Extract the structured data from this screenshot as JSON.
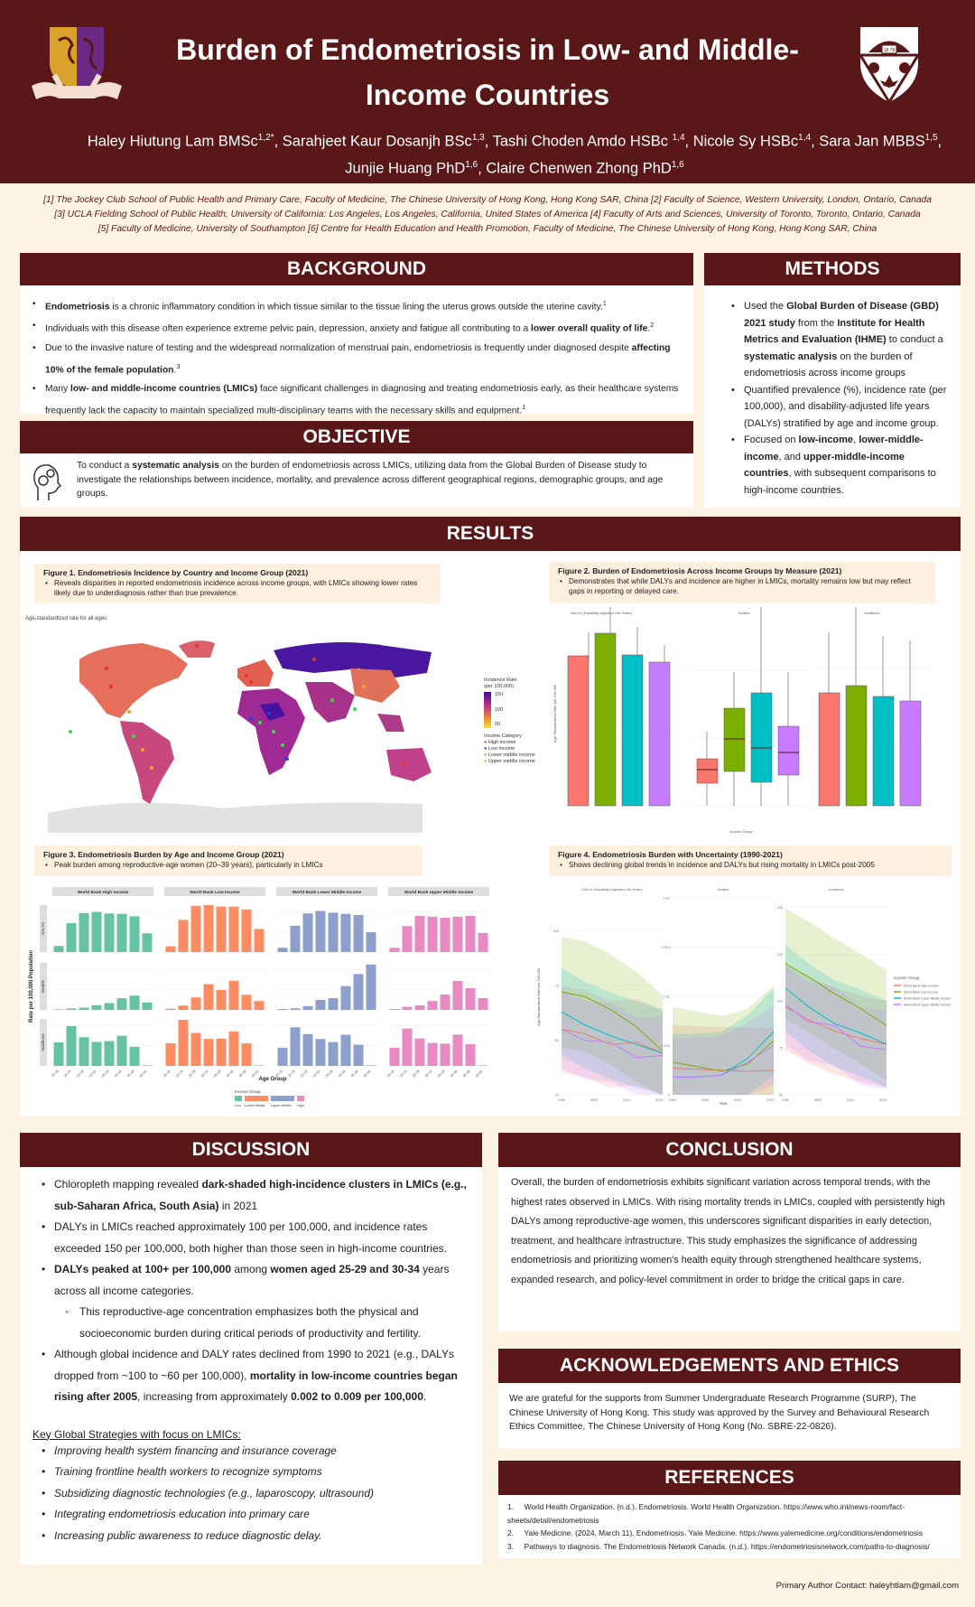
{
  "header": {
    "title_line1": "Burden of Endometriosis in Low- and Middle-",
    "title_line2": "Income Countries",
    "authors": [
      {
        "name": "Haley Hiutung Lam BMSc",
        "sup": "1,2*"
      },
      {
        "name": "Sarahjeet Kaur Dosanjh BSc",
        "sup": "1,3"
      },
      {
        "name": "Tashi Choden Amdo HSBc ",
        "sup": "1,4"
      },
      {
        "name": "Nicole Sy HSBc",
        "sup": "1,4"
      },
      {
        "name": "Sara Jan MBBS",
        "sup": "1,5"
      },
      {
        "name": "Junjie Huang PhD",
        "sup": "1,6"
      },
      {
        "name": "Claire Chenwen Zhong PhD",
        "sup": "1,6"
      }
    ],
    "logo_left": "university-crest-logo",
    "logo_right": "university-shield-logo",
    "logo_right_text": "18 78"
  },
  "affiliations": [
    "[1] The Jockey Club School of Public Health and Primary Care, Faculty of Medicine, The Chinese University of Hong Kong, Hong Kong SAR, China [2] Faculty of Science, Western University, London, Ontario, Canada",
    "[3] UCLA Fielding School of Public Health, University of California: Los Angeles, Los Angeles, California, United States of America [4] Faculty of Arts and Sciences, University of Toronto, Toronto, Ontario, Canada",
    "[5] Faculty of Medicine, University of Southampton [6] Centre for Health Education and Health Promotion, Faculty of Medicine, The Chinese University of Hong Kong, Hong Kong SAR, China"
  ],
  "background": {
    "heading": "BACKGROUND",
    "items": [
      {
        "b": "Endometriosis",
        "t": " is a chronic inflammatory condition in which tissue similar to the tissue lining the uterus grows outside the uterine cavity.",
        "sup": "1"
      },
      {
        "t0": "Individuals with this disease often experience extreme pelvic pain, depression, anxiety and fatigue all contributing to a ",
        "b": "lower overall quality of life",
        "t": ".",
        "sup": "2"
      },
      {
        "t0": "Due to the invasive nature of testing and the widespread normalization of menstrual pain, endometriosis is frequently under diagnosed despite ",
        "b": "affecting 10% of the female population",
        "t": ".",
        "sup": "3"
      },
      {
        "t0": "Many ",
        "b": "low- and middle-income countries (LMICs)",
        "t": " face significant challenges in diagnosing and treating endometriosis early, as their healthcare systems frequently lack the capacity to maintain specialized multi-disciplinary teams with the necessary skills and equipment.",
        "sup": "1"
      }
    ]
  },
  "objective": {
    "heading": "OBJECTIVE",
    "icon": "head-gears-icon",
    "t0": "To conduct a ",
    "b": "systematic analysis",
    "t": " on the burden of endometriosis across LMICs, utilizing data from the Global Burden of Disease study to investigate the relationships between incidence, mortality, and prevalence across different geographical regions, demographic groups, and age groups."
  },
  "methods": {
    "heading": "METHODS",
    "item1": {
      "t0": "Used the ",
      "b1": "Global Burden of Disease (GBD) 2021 study",
      "t1": " from the ",
      "b2": "Institute for Health Metrics and Evaluation (IHME)",
      "t2": " to conduct a ",
      "b3": "systematic analysis",
      "t3": " on the burden of endometriosis across income groups"
    },
    "item2": "Quantified prevalence (%), incidence rate (per 100,000), and disability-adjusted life years (DALYs) stratified by age and income group.",
    "item3": {
      "t0": "Focused on ",
      "b1": "low-income",
      "t1": ", ",
      "b2": "lower-middle-income",
      "t2": ", and ",
      "b3": "upper-middle-income countries",
      "t3": ", with subsequent comparisons to high-income countries."
    }
  },
  "results": {
    "heading": "RESULTS",
    "fig1": {
      "title": "Figure 1. Endometriosis Incidence by Country and Income Group (2021)",
      "bullet": "Reveals disparities in reported endometriosis incidence across income groups, with LMICs showing lower rates likely due to underdiagnosis rather than true prevalence."
    },
    "fig2": {
      "title": "Figure 2. Burden of Endometriosis  Across Income Groups by Measure (2021)",
      "bullet": "Demonstrates that while DALYs and incidence are higher in LMICs, mortality remains low but may reflect gaps in reporting or delayed care."
    },
    "fig3": {
      "title": "Figure 3. Endometriosis Burden by Age and Income Group (2021)",
      "bullet": "Peak burden among reproductive-age women (20–39 years), particularly in LMICs"
    },
    "fig4": {
      "title": "Figure 4. Endometriosis Burden with Uncertainty (1990-2021)",
      "bullet": "Shows declining global trends in incidence and DALYs but rising mortality in LMICs post-2005"
    }
  },
  "chart_data": [
    {
      "id": "fig1",
      "type": "heatmap",
      "title": "Age-standardized rate for all ages",
      "colorbar": {
        "label": "Incidence Rate (per 100,000)",
        "ticks": [
          50,
          100,
          150
        ],
        "colors": [
          "#f6e526",
          "#e7793f",
          "#b12a90",
          "#3d0f8c"
        ]
      },
      "legend_title": "Income Category",
      "legend": [
        {
          "name": "High income",
          "color": "#e8322b"
        },
        {
          "name": "Low income",
          "color": "#2a3fe0"
        },
        {
          "name": "Lower middle income",
          "color": "#3ddc3d"
        },
        {
          "name": "Upper middle income",
          "color": "#f6a21e"
        }
      ]
    },
    {
      "id": "fig2",
      "type": "bar",
      "facets": [
        "DALYs (Disability-Adjusted Life Years)",
        "Deaths",
        "Incidence"
      ],
      "categories": [
        "World Bank High Income",
        "World Bank Low Income",
        "World Bank Lower Middle Income",
        "World Bank Upper Middle Income"
      ],
      "colors": [
        "#f8766d",
        "#7cae00",
        "#00bfc4",
        "#c77cff"
      ],
      "ylabel": "Age-Standardized Rate per 100,000",
      "xlabel": "Income Group",
      "series": [
        {
          "name": "DALYs",
          "yticks": [
            0,
            50,
            100
          ],
          "box_top": [
            95,
            111,
            96,
            90
          ],
          "whisker_top": [
            111,
            128,
            111,
            101
          ]
        },
        {
          "name": "Deaths",
          "yticks": [
            0.0,
            0.01,
            0.02
          ],
          "box_low": [
            0.0007,
            0.0025,
            0.0008,
            0.0019
          ],
          "median": [
            0.0027,
            0.0072,
            0.0059,
            0.0052
          ],
          "box_high": [
            0.0044,
            0.0119,
            0.0141,
            0.0091
          ],
          "whisker_top": [
            0.0083,
            0.0173,
            0.0266,
            0.0171
          ]
        },
        {
          "name": "Incidence",
          "yticks": [
            0,
            100,
            200
          ],
          "box_top": [
            137,
            148,
            133,
            126
          ],
          "whisker_top": [
            225,
            262,
            220,
            214
          ]
        }
      ]
    },
    {
      "id": "fig3",
      "type": "bar",
      "xlabel": "Age Group",
      "ylabel": "Rate per 100,000 Population",
      "categories": [
        "15-19",
        "20-24",
        "25-29",
        "30-34",
        "35-39",
        "40-44",
        "45-49",
        "50-54"
      ],
      "facet_cols": [
        "World Bank High Income",
        "World Bank Low Income",
        "World Bank Lower Middle Income",
        "World Bank Upper Middle Income"
      ],
      "facet_rows": [
        "DALYs",
        "Deaths",
        "Incidence"
      ],
      "colors": [
        "#66c2a5",
        "#fc8d62",
        "#8da0cb",
        "#e78ac3"
      ],
      "legend_title": "Income Group",
      "legend": [
        "Low",
        "Lower Middle",
        "Upper Middle",
        "High"
      ],
      "series": [
        {
          "row": "DALYs",
          "yticks": [
            0,
            50,
            100
          ],
          "ymax": 130,
          "values": [
            [
              17,
              80,
              108,
              111,
              107,
              106,
              99,
              52
            ],
            [
              16,
              89,
              128,
              130,
              126,
              126,
              118,
              64
            ],
            [
              12,
              73,
              107,
              114,
              109,
              106,
              103,
              55
            ],
            [
              12,
              72,
              100,
              98,
              95,
              98,
              100,
              53
            ]
          ]
        },
        {
          "row": "Deaths",
          "yticks": [
            0.0,
            0.01,
            0.02
          ],
          "ymax": 0.027,
          "values": [
            [
              0.0003,
              0.0008,
              0.0013,
              0.0027,
              0.0039,
              0.0067,
              0.0082,
              0.0043
            ],
            [
              0.0007,
              0.0025,
              0.0072,
              0.0148,
              0.0115,
              0.0168,
              0.0087,
              0.0051
            ],
            [
              0.0005,
              0.0009,
              0.0022,
              0.0058,
              0.0068,
              0.0137,
              0.0206,
              0.0261
            ],
            [
              0.0005,
              0.0018,
              0.0026,
              0.0051,
              0.0088,
              0.0166,
              0.0125,
              0.0068
            ]
          ]
        },
        {
          "row": "Incidence",
          "yticks": [
            0,
            100,
            200
          ],
          "ymax": 270,
          "values": [
            [
              135,
              228,
              165,
              138,
              143,
              173,
              110,
              3
            ],
            [
              130,
              265,
              190,
              155,
              157,
              198,
              130,
              3
            ],
            [
              105,
              222,
              183,
              155,
              137,
              179,
              122,
              3
            ],
            [
              105,
              215,
              158,
              132,
              128,
              180,
              125,
              3
            ]
          ]
        }
      ]
    },
    {
      "id": "fig4",
      "type": "line",
      "facets": [
        "DALYs (Disability-Adjusted Life Years)",
        "Deaths",
        "Incidence"
      ],
      "x": [
        1990,
        2000,
        2010,
        2020
      ],
      "xlabel": "Year",
      "ylabel": "Age-Standardized Rate per 100,000",
      "legend_title": "Income Group",
      "legend": [
        {
          "name": "World Bank High Income",
          "color": "#f8766d"
        },
        {
          "name": "World Bank Low Income",
          "color": "#7cae00"
        },
        {
          "name": "World Bank Lower Middle Income",
          "color": "#00bfc4"
        },
        {
          "name": "World Bank Upper Middle Income",
          "color": "#c77cff"
        }
      ],
      "panels": [
        {
          "name": "DALYs",
          "yticks": [
            25,
            50,
            75,
            100
          ],
          "ylim": [
            25,
            115
          ],
          "series": [
            [
              55,
              53,
              48,
              49,
              44
            ],
            [
              72,
              70,
              64,
              56,
              45
            ],
            [
              63,
              57,
              52,
              48,
              44
            ],
            [
              55,
              50,
              49,
              42,
              43
            ]
          ]
        },
        {
          "name": "Deaths",
          "yticks": [
            0.0,
            0.005,
            0.01,
            0.015,
            0.02
          ],
          "ylim": [
            0,
            0.02
          ],
          "series": [
            [
              0.0027,
              0.0026,
              0.0025,
              0.0024,
              0.0025
            ],
            [
              0.0033,
              0.0029,
              0.0024,
              0.0031,
              0.0055
            ],
            [
              0.0018,
              0.0018,
              0.002,
              0.0037,
              0.0064
            ],
            [
              0.0018,
              0.0018,
              0.002,
              0.0033,
              0.005
            ]
          ]
        },
        {
          "name": "Incidence",
          "yticks": [
            50,
            75,
            100,
            125,
            150
          ],
          "ylim": [
            50,
            155
          ],
          "series": [
            [
              97,
              90,
              84,
              80,
              77
            ],
            [
              120,
              113,
              104,
              96,
              87
            ],
            [
              107,
              97,
              88,
              83,
              77
            ],
            [
              98,
              89,
              87,
              76,
              74
            ]
          ]
        }
      ],
      "years_sampled": [
        1990,
        1997,
        2005,
        2013,
        2021
      ]
    }
  ],
  "discussion": {
    "heading": "DISCUSSION",
    "i1": {
      "t0": "Chloropleth mapping revealed ",
      "b": "dark-shaded high-incidence clusters in LMICs (e.g., sub-Saharan Africa, South Asia)",
      "t": " in 2021"
    },
    "i2": "DALYs in LMICs reached approximately 100 per 100,000, and incidence rates exceeded 150 per 100,000, both higher than those seen in high-income countries.",
    "i3": {
      "b1": "DALYs peaked at 100+ per 100,000",
      "t1": " among ",
      "b2": "women aged 25-29 and 30-34",
      "t2": " years across all income categories."
    },
    "i3_sub": "This reproductive-age concentration emphasizes both the physical and socioeconomic burden during critical periods of productivity and fertility.",
    "i4": {
      "t0": "Although global incidence and DALY rates declined from 1990 to 2021 (e.g., DALYs dropped from ~100 to ~60 per 100,000), ",
      "b1": "mortality in low-income countries began rising after 2005",
      "t1": ", increasing from approximately ",
      "b2": "0.002 to 0.009 per 100,000",
      "t2": "."
    },
    "strategies_title": "Key Global Strategies with focus on LMICs:",
    "strategies": [
      "Improving health system financing and insurance coverage",
      "Training frontline health workers to recognize symptoms",
      "Subsidizing diagnostic technologies (e.g., laparoscopy, ultrasound)",
      "Integrating endometriosis education into primary care",
      "Increasing public awareness to reduce diagnostic delay."
    ]
  },
  "conclusion": {
    "heading": "CONCLUSION",
    "text": "Overall, the burden of endometriosis exhibits significant variation across temporal trends, with the highest rates observed in LMICs. With rising mortality trends in LMICs, coupled with persistently high DALYs among reproductive-age women, this underscores significant disparities in early detection, treatment, and healthcare infrastructure. This study emphasizes the significance of addressing endometriosis and prioritizing women's health equity through strengthened healthcare systems, expanded research, and policy-level commitment in order to bridge the critical gaps in care."
  },
  "acknowledgements": {
    "heading": "ACKNOWLEDGEMENTS AND ETHICS",
    "text": "We are grateful for the supports from Summer Undergraduate Research Programme (SURP), The Chinese University of Hong Kong. This study was approved by the Survey and Behavioural Research Ethics Committee, The Chinese University of Hong Kong (No. SBRE-22-0826)."
  },
  "references": {
    "heading": "REFERENCES",
    "items": [
      "1.     World Health Organization. (n.d.). Endometriosis. World Health Organization. https://www.who.int/news-room/fact-sheets/detail/endometriosis",
      "2.     Yale Medicine. (2024, March 11). Endometriosis. Yale Medicine. https://www.yalemedicine.org/conditions/endometriosis",
      "3.     Pathways to diagnosis. The Endometriosis Network Canada. (n.d.). https://endometriosisnetwork.com/paths-to-diagnosis/"
    ]
  },
  "contact": "Primary Author Contact: haleyhtlam@gmail.com",
  "colors": {
    "maroon": "#5a1718",
    "cream": "#fdf3e4",
    "caption_bg": "#fdf0de"
  }
}
